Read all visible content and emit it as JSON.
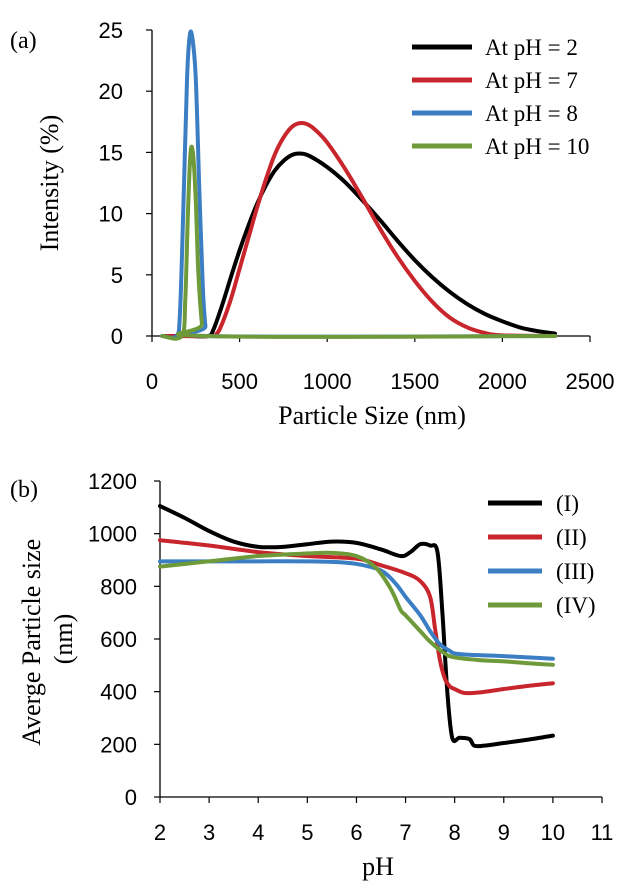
{
  "chart_data": [
    {
      "type": "line",
      "panel_label": "(a)",
      "title": "",
      "xlabel": "Particle Size (nm)",
      "ylabel": "Intensity (%)",
      "xlim": [
        0,
        2500
      ],
      "ylim": [
        0,
        25
      ],
      "xticks": [
        0,
        500,
        1000,
        1500,
        2000,
        2500
      ],
      "yticks": [
        0,
        5,
        10,
        15,
        20,
        25
      ],
      "grid": false,
      "legend_position": "top-right",
      "series": [
        {
          "name": "At pH = 2",
          "color": "#000000",
          "x": [
            60,
            200,
            320,
            350,
            400,
            450,
            500,
            550,
            600,
            650,
            700,
            750,
            800,
            850,
            900,
            1000,
            1100,
            1200,
            1300,
            1400,
            1500,
            1600,
            1700,
            1800,
            1900,
            2000,
            2100,
            2200,
            2300
          ],
          "y": [
            0,
            0,
            0,
            0.5,
            2.5,
            4.8,
            7,
            9,
            10.8,
            12.3,
            13.5,
            14.3,
            14.8,
            14.9,
            14.7,
            13.8,
            12.6,
            11.1,
            9.5,
            7.8,
            6.2,
            4.8,
            3.6,
            2.6,
            1.8,
            1.2,
            0.7,
            0.4,
            0.2
          ]
        },
        {
          "name": "At pH = 7",
          "color": "#c8262c",
          "x": [
            60,
            330,
            370,
            400,
            450,
            500,
            550,
            600,
            650,
            700,
            750,
            800,
            850,
            900,
            950,
            1000,
            1100,
            1200,
            1300,
            1400,
            1500,
            1600,
            1700,
            1800,
            1900,
            2000,
            2300
          ],
          "y": [
            0,
            0,
            0.2,
            1,
            3,
            5.5,
            8,
            10.5,
            12.8,
            14.8,
            16.2,
            17.1,
            17.4,
            17.2,
            16.6,
            15.8,
            13.7,
            11.3,
            8.8,
            6.5,
            4.5,
            2.8,
            1.5,
            0.7,
            0.25,
            0.05,
            0
          ]
        },
        {
          "name": "At pH =  8",
          "color": "#3b7ec4",
          "x": [
            60,
            140,
            160,
            180,
            200,
            215,
            230,
            250,
            270,
            290,
            305,
            320,
            2300
          ],
          "y": [
            0,
            0,
            2,
            11,
            21,
            24.5,
            24.4,
            21,
            12,
            4,
            0.8,
            0,
            0
          ]
        },
        {
          "name": "At pH = 10",
          "color": "#6e9a3a",
          "x": [
            60,
            170,
            190,
            205,
            220,
            235,
            250,
            265,
            285,
            300,
            2300
          ],
          "y": [
            0,
            0,
            3,
            10,
            15,
            14.8,
            11,
            5,
            1,
            0,
            0
          ]
        }
      ]
    },
    {
      "type": "line",
      "panel_label": "(b)",
      "title": "",
      "xlabel": "pH",
      "ylabel": "Averge Particle size (nm)",
      "xlim": [
        2,
        11
      ],
      "ylim": [
        0,
        1200
      ],
      "xticks": [
        2,
        3,
        4,
        5,
        6,
        7,
        8,
        9,
        10,
        11
      ],
      "yticks": [
        0,
        200,
        400,
        600,
        800,
        1000,
        1200
      ],
      "grid": false,
      "legend_position": "top-right",
      "series": [
        {
          "name": "(I)",
          "color": "#000000",
          "x": [
            2,
            2.5,
            3,
            3.5,
            4,
            4.5,
            5,
            5.5,
            6,
            6.5,
            6.9,
            7.1,
            7.3,
            7.5,
            7.65,
            7.75,
            7.85,
            7.95,
            8.1,
            8.3,
            8.4,
            8.6,
            9,
            9.5,
            10
          ],
          "y": [
            1105,
            1060,
            1010,
            970,
            950,
            950,
            960,
            970,
            965,
            940,
            915,
            930,
            960,
            955,
            930,
            700,
            400,
            225,
            225,
            220,
            195,
            195,
            205,
            218,
            233
          ]
        },
        {
          "name": "(II)",
          "color": "#c8262c",
          "x": [
            2,
            3,
            4,
            5,
            6,
            6.5,
            7,
            7.3,
            7.5,
            7.6,
            7.7,
            7.8,
            7.9,
            8,
            8.2,
            8.5,
            9,
            9.5,
            10
          ],
          "y": [
            975,
            955,
            930,
            915,
            905,
            880,
            850,
            820,
            760,
            640,
            520,
            450,
            420,
            410,
            395,
            397,
            410,
            422,
            432
          ]
        },
        {
          "name": "(III)",
          "color": "#3b7ec4",
          "x": [
            2,
            3,
            4,
            5,
            5.5,
            6,
            6.5,
            6.8,
            7,
            7.3,
            7.5,
            7.7,
            7.9,
            8,
            8.3,
            9,
            9.5,
            10
          ],
          "y": [
            895,
            895,
            895,
            895,
            893,
            885,
            860,
            810,
            760,
            690,
            630,
            580,
            555,
            545,
            540,
            535,
            530,
            525
          ]
        },
        {
          "name": "(IV)",
          "color": "#6e9a3a",
          "x": [
            2,
            3,
            4,
            5,
            5.5,
            6,
            6.4,
            6.7,
            6.9,
            7,
            7.3,
            7.5,
            7.8,
            8,
            8.5,
            9,
            9.5,
            10
          ],
          "y": [
            875,
            895,
            915,
            925,
            927,
            915,
            870,
            790,
            710,
            690,
            630,
            590,
            545,
            530,
            520,
            515,
            508,
            502
          ]
        }
      ]
    }
  ]
}
